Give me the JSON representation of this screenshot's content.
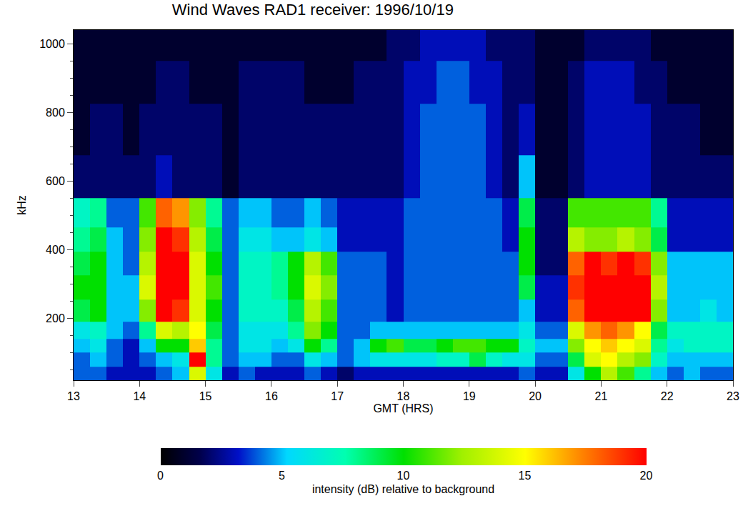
{
  "chart_data": {
    "type": "heatmap",
    "title": "Wind Waves RAD1 receiver: 1996/10/19",
    "x_label": "GMT (HRS)",
    "y_label": "kHz",
    "xlim": [
      13,
      23
    ],
    "ylim": [
      20,
      1040
    ],
    "xticks": [
      13,
      14,
      15,
      16,
      17,
      18,
      19,
      20,
      21,
      22,
      23
    ],
    "yticks": [
      200,
      400,
      600,
      800,
      1000
    ],
    "x": [
      13.125,
      13.375,
      13.625,
      13.875,
      14.125,
      14.375,
      14.625,
      14.875,
      15.125,
      15.375,
      15.625,
      15.875,
      16.125,
      16.375,
      16.625,
      16.875,
      17.125,
      17.375,
      17.625,
      17.875,
      18.125,
      18.375,
      18.625,
      18.875,
      19.125,
      19.375,
      19.625,
      19.875,
      20.125,
      20.375,
      20.625,
      20.875,
      21.125,
      21.375,
      21.625,
      21.875,
      22.125,
      22.375,
      22.625,
      22.875
    ],
    "y": [
      40,
      80,
      120,
      160,
      220,
      290,
      360,
      430,
      500,
      600,
      750,
      900,
      1000
    ],
    "cells": [
      [
        4,
        4,
        3,
        3,
        3,
        4,
        5,
        14,
        6,
        3,
        4,
        3,
        3,
        3,
        4,
        3,
        2,
        3,
        3,
        3,
        3,
        3,
        3,
        3,
        3,
        3,
        3,
        4,
        3,
        3,
        6,
        10,
        13,
        11,
        8,
        5,
        4,
        5,
        4,
        4
      ],
      [
        4,
        5,
        4,
        3,
        4,
        5,
        6,
        20,
        8,
        4,
        5,
        5,
        4,
        4,
        6,
        5,
        4,
        5,
        6,
        6,
        6,
        6,
        7,
        7,
        9,
        7,
        6,
        6,
        4,
        4,
        9,
        14,
        15,
        13,
        12,
        7,
        5,
        5,
        5,
        5
      ],
      [
        5,
        6,
        4,
        3,
        5,
        10,
        10,
        16,
        8,
        4,
        6,
        6,
        5,
        6,
        10,
        8,
        4,
        5,
        10,
        11,
        9,
        9,
        10,
        11,
        11,
        10,
        10,
        7,
        5,
        5,
        12,
        15,
        16,
        15,
        14,
        8,
        6,
        7,
        7,
        7
      ],
      [
        6,
        7,
        5,
        4,
        8,
        14,
        13,
        15,
        9,
        4,
        6,
        6,
        6,
        8,
        12,
        10,
        4,
        4,
        5,
        5,
        5,
        5,
        5,
        5,
        5,
        5,
        5,
        6,
        4,
        4,
        14,
        17,
        18,
        17,
        15,
        9,
        7,
        7,
        7,
        7
      ],
      [
        9,
        10,
        5,
        5,
        12,
        20,
        19,
        14,
        10,
        4,
        7,
        7,
        7,
        9,
        13,
        11,
        4,
        4,
        4,
        3,
        4,
        4,
        4,
        4,
        4,
        4,
        4,
        5,
        3,
        3,
        18,
        20,
        20,
        20,
        20,
        12,
        5,
        5,
        6,
        5
      ],
      [
        10,
        10,
        5,
        5,
        14,
        20,
        20,
        14,
        11,
        4,
        7,
        7,
        8,
        10,
        14,
        12,
        4,
        4,
        4,
        3,
        4,
        4,
        4,
        4,
        4,
        4,
        4,
        9,
        3,
        3,
        19,
        20,
        20,
        20,
        20,
        13,
        5,
        5,
        5,
        5
      ],
      [
        9,
        10,
        5,
        4,
        13,
        20,
        20,
        14,
        10,
        4,
        7,
        7,
        8,
        10,
        13,
        11,
        4,
        4,
        4,
        3,
        4,
        4,
        4,
        4,
        4,
        4,
        4,
        10,
        2,
        2,
        18,
        20,
        19,
        20,
        19,
        12,
        5,
        5,
        5,
        5
      ],
      [
        8,
        9,
        5,
        4,
        12,
        20,
        19,
        13,
        9,
        4,
        6,
        6,
        5,
        5,
        6,
        5,
        3,
        3,
        3,
        3,
        4,
        4,
        4,
        4,
        4,
        4,
        3,
        10,
        2,
        2,
        13,
        12,
        12,
        13,
        12,
        9,
        3,
        3,
        3,
        3
      ],
      [
        7,
        8,
        4,
        4,
        11,
        18,
        17,
        12,
        8,
        4,
        5,
        5,
        4,
        4,
        5,
        4,
        3,
        3,
        3,
        3,
        4,
        4,
        4,
        4,
        4,
        4,
        3,
        9,
        2,
        2,
        11,
        11,
        11,
        11,
        11,
        8,
        3,
        3,
        3,
        3
      ],
      [
        2,
        2,
        2,
        2,
        2,
        3,
        2,
        2,
        2,
        1,
        2,
        2,
        2,
        2,
        2,
        2,
        2,
        2,
        2,
        2,
        3,
        4,
        4,
        4,
        4,
        3,
        2,
        5,
        1,
        1,
        2,
        3,
        3,
        3,
        3,
        2,
        2,
        2,
        2,
        2
      ],
      [
        1,
        2,
        2,
        1,
        2,
        2,
        2,
        2,
        2,
        1,
        2,
        2,
        2,
        2,
        2,
        2,
        2,
        2,
        2,
        2,
        3,
        4,
        4,
        4,
        4,
        3,
        2,
        3,
        1,
        1,
        2,
        3,
        3,
        3,
        3,
        2,
        2,
        2,
        1,
        1
      ],
      [
        1,
        1,
        1,
        1,
        1,
        2,
        2,
        1,
        1,
        1,
        2,
        2,
        2,
        2,
        1,
        1,
        1,
        2,
        2,
        2,
        3,
        3,
        4,
        4,
        3,
        3,
        2,
        2,
        1,
        1,
        2,
        3,
        3,
        3,
        2,
        2,
        1,
        1,
        1,
        1
      ],
      [
        1,
        1,
        1,
        1,
        1,
        1,
        1,
        1,
        1,
        1,
        1,
        1,
        1,
        1,
        1,
        1,
        1,
        1,
        1,
        2,
        2,
        3,
        3,
        3,
        3,
        2,
        2,
        2,
        1,
        1,
        1,
        2,
        2,
        2,
        2,
        1,
        1,
        1,
        1,
        1
      ]
    ],
    "colorbar": {
      "title": "intensity (dB) relative to background",
      "range": [
        0,
        20
      ],
      "ticks": [
        0,
        5,
        10,
        15,
        20
      ]
    }
  }
}
